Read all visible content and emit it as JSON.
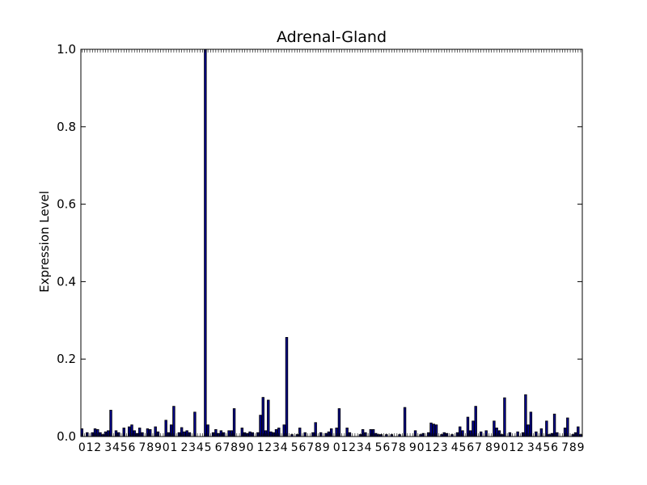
{
  "chart_data": {
    "type": "bar",
    "title": "Adrenal-Gland",
    "xlabel": "",
    "ylabel": "Expression Level",
    "ylim": [
      0,
      1.0
    ],
    "yticks": [
      "0.0",
      "0.2",
      "0.4",
      "0.6",
      "0.8",
      "1.0"
    ],
    "x_tick_labels_visible": [
      "0",
      "1",
      "2",
      "3",
      "4",
      "5",
      "6",
      "7",
      "8",
      "9"
    ],
    "bar_color": "#00008b",
    "grid": false,
    "values": [
      0.02,
      0.0,
      0.01,
      0.0,
      0.01,
      0.02,
      0.018,
      0.01,
      0.005,
      0.012,
      0.015,
      0.068,
      0.0,
      0.015,
      0.01,
      0.0,
      0.022,
      0.0,
      0.025,
      0.03,
      0.015,
      0.008,
      0.022,
      0.01,
      0.0,
      0.02,
      0.018,
      0.0,
      0.025,
      0.012,
      0.0,
      0.0,
      0.042,
      0.01,
      0.03,
      0.078,
      0.0,
      0.01,
      0.023,
      0.012,
      0.015,
      0.01,
      0.0,
      0.063,
      0.0,
      0.0,
      0.0,
      1.0,
      0.03,
      0.0,
      0.01,
      0.018,
      0.008,
      0.015,
      0.01,
      0.0,
      0.015,
      0.015,
      0.072,
      0.0,
      0.0,
      0.022,
      0.01,
      0.008,
      0.012,
      0.01,
      0.0,
      0.01,
      0.055,
      0.101,
      0.015,
      0.094,
      0.012,
      0.01,
      0.018,
      0.022,
      0.0,
      0.03,
      0.256,
      0.0,
      0.005,
      0.0,
      0.005,
      0.022,
      0.0,
      0.01,
      0.0,
      0.0,
      0.01,
      0.036,
      0.0,
      0.01,
      0.0,
      0.008,
      0.012,
      0.02,
      0.0,
      0.022,
      0.072,
      0.0,
      0.0,
      0.022,
      0.01,
      0.0,
      0.0,
      0.0,
      0.005,
      0.018,
      0.01,
      0.0,
      0.018,
      0.018,
      0.008,
      0.005,
      0.005,
      0.0,
      0.005,
      0.0,
      0.005,
      0.0,
      0.0,
      0.005,
      0.0,
      0.075,
      0.0,
      0.0,
      0.0,
      0.015,
      0.0,
      0.005,
      0.008,
      0.0,
      0.01,
      0.035,
      0.032,
      0.03,
      0.0,
      0.005,
      0.01,
      0.008,
      0.0,
      0.005,
      0.0,
      0.01,
      0.025,
      0.015,
      0.0,
      0.05,
      0.015,
      0.04,
      0.078,
      0.0,
      0.012,
      0.0,
      0.015,
      0.0,
      0.0,
      0.04,
      0.022,
      0.015,
      0.005,
      0.1,
      0.0,
      0.01,
      0.0,
      0.0,
      0.012,
      0.0,
      0.01,
      0.108,
      0.03,
      0.063,
      0.0,
      0.012,
      0.0,
      0.02,
      0.0,
      0.04,
      0.005,
      0.008,
      0.058,
      0.01,
      0.0,
      0.0,
      0.022,
      0.048,
      0.0,
      0.005,
      0.01,
      0.025,
      0.005
    ]
  }
}
